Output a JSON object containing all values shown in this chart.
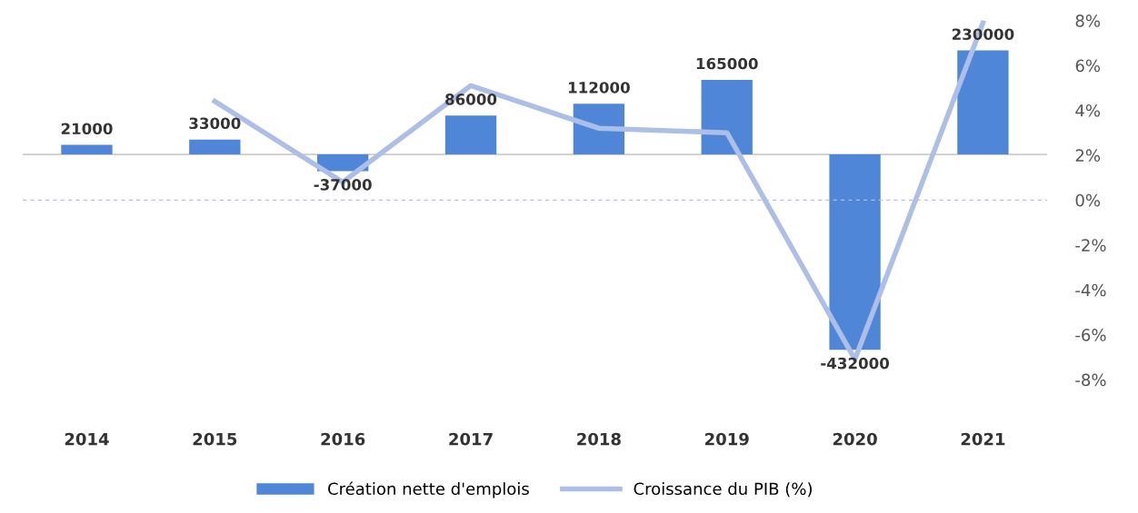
{
  "chart_data": {
    "type": "bar",
    "categories": [
      "2014",
      "2015",
      "2016",
      "2017",
      "2018",
      "2019",
      "2020",
      "2021"
    ],
    "series": [
      {
        "name": "Création nette d'emplois",
        "color": "#4f86d8",
        "values": [
          21000,
          33000,
          -37000,
          86000,
          112000,
          165000,
          -432000,
          230000
        ],
        "data_labels": true
      },
      {
        "name": "Croissance du PIB (%)",
        "type": "line",
        "axis": "y2",
        "color": "#adbfe6",
        "values": [
          null,
          4.4,
          0.8,
          5.1,
          3.2,
          3.0,
          -7.1,
          7.9
        ]
      }
    ],
    "y2lim": [
      -8,
      8
    ],
    "y2ticks": [
      {
        "value": 8,
        "label": "8%"
      },
      {
        "value": 6,
        "label": "6%"
      },
      {
        "value": 4,
        "label": "4%"
      },
      {
        "value": 2,
        "label": "2%"
      },
      {
        "value": 0,
        "label": "0%"
      },
      {
        "value": -2,
        "label": "-2%"
      },
      {
        "value": -4,
        "label": "-4%"
      },
      {
        "value": -6,
        "label": "-6%"
      },
      {
        "value": -8,
        "label": "-8%"
      }
    ],
    "ref_lines": [
      {
        "axis": "y2",
        "value": 0,
        "color": "#b4c0e0",
        "line_style": "dashed"
      }
    ],
    "grid": false,
    "legend": "bottom",
    "marker": "none",
    "line_style": "solid"
  }
}
